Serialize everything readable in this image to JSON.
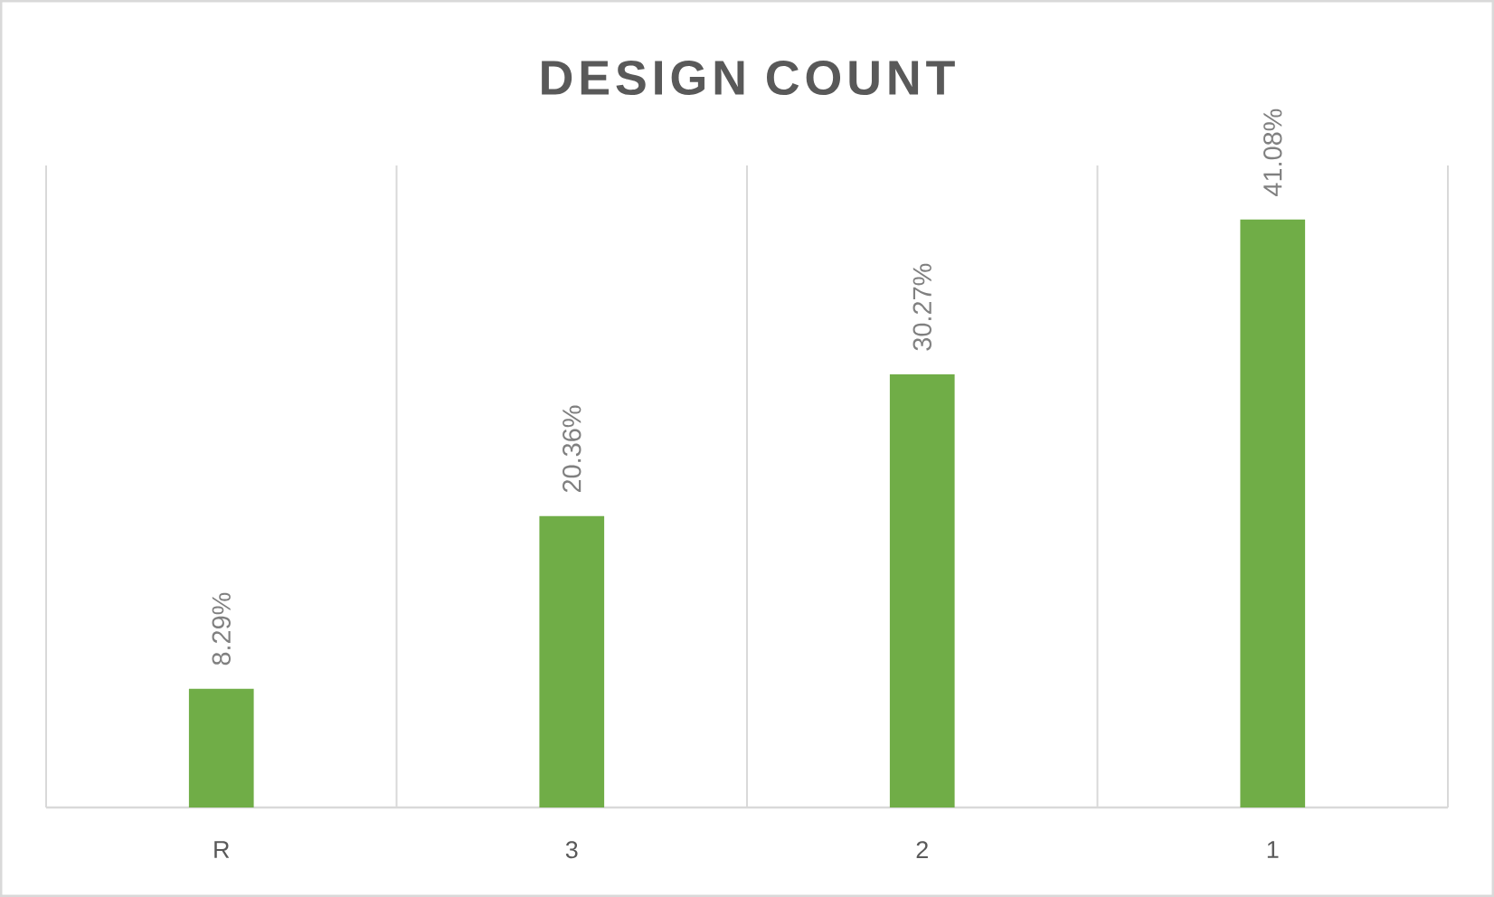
{
  "chart_data": {
    "type": "bar",
    "title": "DESIGN COUNT",
    "categories": [
      "R",
      "3",
      "2",
      "1"
    ],
    "values": [
      8.29,
      20.36,
      30.27,
      41.08
    ],
    "value_labels": [
      "8.29%",
      "20.36%",
      "30.27%",
      "41.08%"
    ],
    "color": "#70ad47",
    "grid": "x",
    "tick_labels": "x"
  }
}
